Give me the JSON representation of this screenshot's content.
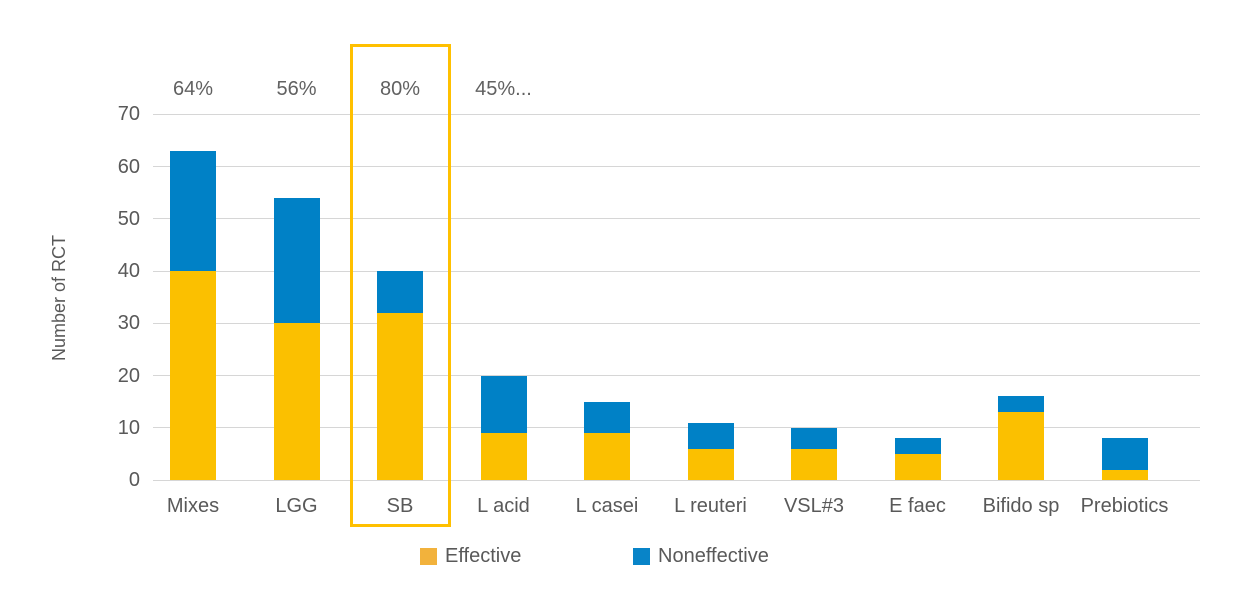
{
  "chart_data": {
    "type": "bar",
    "stacked": true,
    "title": "",
    "xlabel": "",
    "ylabel": "Number of RCT",
    "categories": [
      "Mixes",
      "LGG",
      "SB",
      "L acid",
      "L casei",
      "L reuteri",
      "VSL#3",
      "E faec",
      "Bifido sp",
      "Prebiotics"
    ],
    "series": [
      {
        "name": "Effective",
        "color": "#FBC000",
        "values": [
          40,
          30,
          32,
          9,
          9,
          6,
          6,
          5,
          13,
          2
        ]
      },
      {
        "name": "Noneffective",
        "color": "#0081C6",
        "values": [
          23,
          24,
          8,
          11,
          6,
          5,
          4,
          3,
          3,
          6
        ]
      }
    ],
    "stack_totals": [
      63,
      54,
      40,
      20,
      15,
      11,
      10,
      8,
      16,
      8
    ],
    "ylim": [
      0,
      70
    ],
    "yticks": [
      0,
      10,
      20,
      30,
      40,
      50,
      60,
      70
    ],
    "grid": true,
    "gridline_color": "#d6d6d6",
    "axis_text_color": "#595959",
    "legend_position": "bottom",
    "annotations": [
      {
        "category": "Mixes",
        "text": "64%"
      },
      {
        "category": "LGG",
        "text": "56%"
      },
      {
        "category": "SB",
        "text": "80%"
      },
      {
        "category": "L acid",
        "text": "45%..."
      }
    ],
    "highlight": {
      "category": "SB",
      "border_color": "#FFC000"
    }
  },
  "legend": {
    "items": [
      {
        "label": "Effective",
        "swatch_color": "#F2B23C"
      },
      {
        "label": "Noneffective",
        "swatch_color": "#0884C8"
      }
    ]
  }
}
